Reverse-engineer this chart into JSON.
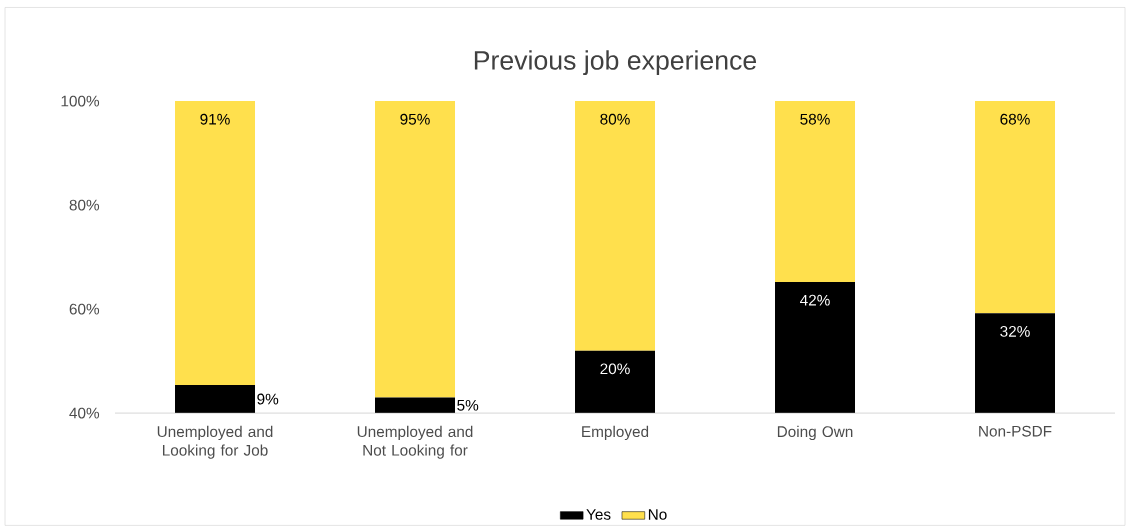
{
  "chart_data": {
    "type": "bar",
    "stacked": true,
    "title": "Previous job experience",
    "categories": [
      "Unemployed and Looking for Job",
      "Unemployed and Not Looking for",
      "Employed",
      "Doing Own",
      "Non-PSDF"
    ],
    "series": [
      {
        "name": "Yes",
        "color": "#000000",
        "axis": "y2",
        "values": [
          9,
          5,
          20,
          42,
          32
        ],
        "value_labels": [
          "9%",
          "5%",
          "20%",
          "42%",
          "32%"
        ]
      },
      {
        "name": "No",
        "color": "#ffe04d",
        "axis": "y2",
        "values": [
          91,
          95,
          80,
          58,
          68
        ],
        "value_labels": [
          "91%",
          "95%",
          "80%",
          "58%",
          "68%"
        ]
      }
    ],
    "ylim": [
      40,
      100
    ],
    "yticks": [
      {
        "value": 40,
        "label": "40%"
      },
      {
        "value": 60,
        "label": "60%"
      },
      {
        "value": 80,
        "label": "80%"
      },
      {
        "value": 100,
        "label": "100%"
      }
    ],
    "y2lim": [
      0,
      100
    ],
    "legend": "bottom"
  }
}
